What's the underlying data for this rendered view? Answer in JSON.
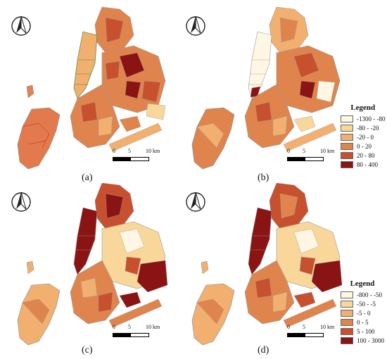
{
  "scale": {
    "label_0": "0",
    "label_5": "5",
    "label_10": "10 km"
  },
  "panels": [
    {
      "id": "a",
      "caption": "(a)"
    },
    {
      "id": "b",
      "caption": "(b)"
    },
    {
      "id": "c",
      "caption": "(c)"
    },
    {
      "id": "d",
      "caption": "(d)"
    }
  ],
  "legends": [
    {
      "title": "Legend",
      "entries": [
        {
          "label": "-1300 - -80",
          "color": "#fff6e4"
        },
        {
          "label": "-80 - -20",
          "color": "#f9d79a"
        },
        {
          "label": "-20 - 0",
          "color": "#f1b070"
        },
        {
          "label": "0 - 20",
          "color": "#e0844e"
        },
        {
          "label": "20 - 80",
          "color": "#c7502e"
        },
        {
          "label": "80 - 400",
          "color": "#8a1414"
        }
      ]
    },
    {
      "title": "Legend",
      "entries": [
        {
          "label": "-800 - -50",
          "color": "#fff6e4"
        },
        {
          "label": "-50 - -5",
          "color": "#f9d79a"
        },
        {
          "label": "-5 - 0",
          "color": "#f1b070"
        },
        {
          "label": "0 - 5",
          "color": "#e0844e"
        },
        {
          "label": "5 - 100",
          "color": "#c7502e"
        },
        {
          "label": "100 - 3000",
          "color": "#8a1414"
        }
      ]
    }
  ]
}
